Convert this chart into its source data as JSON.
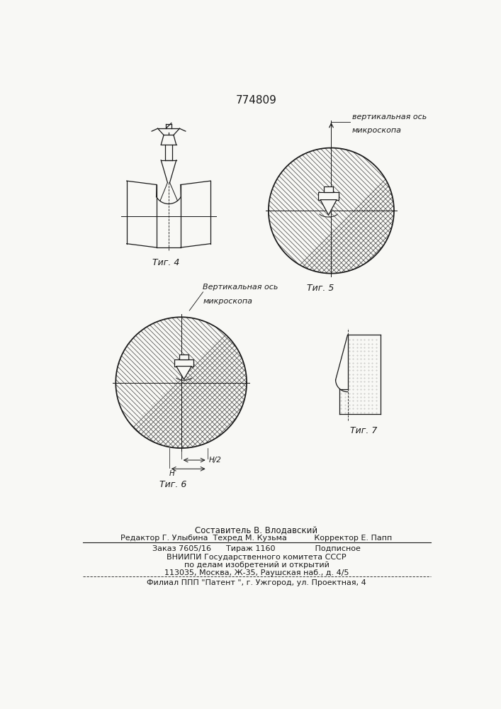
{
  "patent_number": "774809",
  "fig4_label": "Τиг. 4",
  "fig5_label": "Τиг. 5",
  "fig6_label": "Τиг. 6",
  "fig7_label": "Τиг. 7",
  "fig5_annotation_line1": "вертикальная ось",
  "fig5_annotation_line2": "микроскопа",
  "fig6_annotation_line1": "Вертикальная ось",
  "fig6_annotation_line2": "микроскопа",
  "dim_h2": "H/2",
  "dim_h": "H",
  "footer_line1": "Составитель В. Влодавский",
  "footer_line2": "Редактор Г. Улыбина  Техред М. Кузьма           Корректор Е. Папп",
  "footer_line3": "Заказ 7605/16      Тираж 1160                Подписное",
  "footer_line4": "ВНИИПИ Государственного комитета СССР",
  "footer_line5": "по делам изобретений и открытий",
  "footer_line6": "113035, Москва, Ж-35, Раушская наб., д. 4/5",
  "footer_line7": "Филиал ППП \"Патент \", г. Ужгород, ул. Проектная, 4",
  "bg_color": "#f8f8f5",
  "line_color": "#1a1a1a"
}
